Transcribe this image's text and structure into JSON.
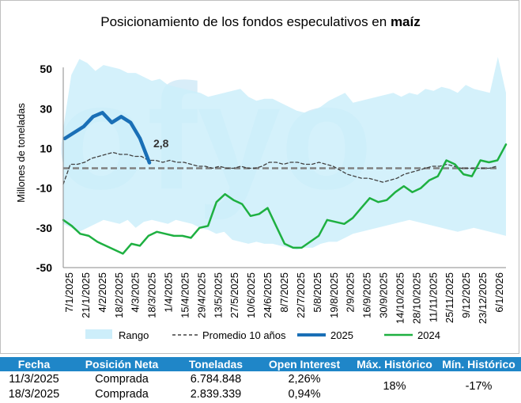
{
  "title_main": "Posicionamiento de los fondos especulativos en ",
  "title_bold": "maíz",
  "chart_data": {
    "type": "line",
    "title": "Posicionamiento de los fondos especulativos en maíz",
    "ylabel": "Millones de toneladas",
    "ylim": [
      -50,
      60
    ],
    "yticks": [
      50,
      30,
      10,
      -10,
      -30,
      -50
    ],
    "xlabels": [
      "7/1/2025",
      "21/1/2025",
      "4/2/2025",
      "18/2/2025",
      "4/3/2025",
      "18/3/2025",
      "1/4/2025",
      "15/4/2025",
      "29/4/2025",
      "13/5/2025",
      "27/5/2025",
      "10/6/2025",
      "24/6/2025",
      "8/7/2025",
      "22/7/2025",
      "5/8/2025",
      "19/8/2025",
      "2/9/2025",
      "16/9/2025",
      "30/9/2025",
      "14/10/2025",
      "28/10/2025",
      "11/11/2025",
      "25/11/2025",
      "9/12/2025",
      "23/12/2025",
      "6/1/2026"
    ],
    "zero_line": 0,
    "annotation": "2,8",
    "series": [
      {
        "name": "Rango",
        "color": "#cdeefa",
        "upper": [
          20,
          47,
          55,
          53,
          49,
          52,
          51,
          50,
          48,
          48,
          46,
          44,
          45,
          42,
          41,
          40,
          39,
          38,
          36,
          37,
          38,
          39,
          40,
          36,
          34,
          35,
          35,
          33,
          31,
          29,
          28,
          29,
          31,
          34,
          36,
          38,
          33,
          34,
          35,
          36,
          37,
          38,
          36,
          38,
          37,
          40,
          39,
          41,
          40,
          38,
          42,
          40,
          39,
          38,
          56,
          38
        ],
        "lower": [
          -28,
          -30,
          -32,
          -30,
          -28,
          -26,
          -27,
          -28,
          -26,
          -30,
          -27,
          -26,
          -27,
          -28,
          -26,
          -27,
          -28,
          -30,
          -31,
          -33,
          -32,
          -36,
          -37,
          -38,
          -37,
          -38,
          -38,
          -39,
          -40,
          -41,
          -40,
          -40,
          -38,
          -37,
          -37,
          -35,
          -33,
          -32,
          -31,
          -30,
          -29,
          -28,
          -27,
          -26,
          -27,
          -28,
          -29,
          -30,
          -31,
          -32,
          -31,
          -30,
          -31,
          -32,
          -33,
          -34
        ]
      },
      {
        "name": "Promedio 10 años",
        "color": "#404040",
        "values": [
          -8,
          2,
          2,
          3,
          5,
          6,
          7,
          8,
          7,
          7,
          6,
          6,
          4,
          4,
          3,
          4,
          3,
          3,
          2,
          1,
          1,
          0,
          1,
          0,
          0,
          1,
          0,
          0,
          1,
          3,
          3,
          2,
          3,
          3,
          2,
          2,
          3,
          2,
          1,
          -1,
          -3,
          -4,
          -5,
          -5,
          -6,
          -7,
          -6,
          -5,
          -3,
          -2,
          -1,
          0,
          1,
          1,
          2,
          1,
          0,
          0,
          0,
          0,
          0,
          1
        ]
      },
      {
        "name": "2025",
        "color": "#1a6fb6",
        "values": [
          15,
          18,
          21,
          26,
          28,
          23,
          26,
          23,
          15,
          2.8
        ]
      },
      {
        "name": "2024",
        "color": "#1eb041",
        "values": [
          -26,
          -29,
          -33,
          -34,
          -37,
          -39,
          -41,
          -43,
          -38,
          -39,
          -34,
          -32,
          -33,
          -34,
          -34,
          -35,
          -30,
          -29,
          -17,
          -13,
          -16,
          -18,
          -24,
          -23,
          -20,
          -29,
          -38,
          -40,
          -40,
          -37,
          -34,
          -26,
          -27,
          -28,
          -25,
          -20,
          -15,
          -17,
          -16,
          -12,
          -9,
          -12,
          -10,
          -6,
          -4,
          4,
          2,
          -3,
          -4,
          4,
          3,
          4,
          12
        ]
      }
    ],
    "avg_line": 0,
    "legend": [
      "Rango",
      "Promedio 10 años",
      "2025",
      "2024"
    ],
    "legend_position": "bottom"
  },
  "table": {
    "headers": [
      "Fecha",
      "Posición Neta",
      "Toneladas",
      "Open Interest",
      "Máx. Histórico",
      "Mín. Histórico"
    ],
    "rows": [
      [
        "11/3/2025",
        "Comprada",
        "6.784.848",
        "2,26%"
      ],
      [
        "18/3/2025",
        "Comprada",
        "2.839.339",
        "0,94%"
      ]
    ],
    "max_hist": "18%",
    "min_hist": "-17%"
  },
  "watermark": "ofyo"
}
